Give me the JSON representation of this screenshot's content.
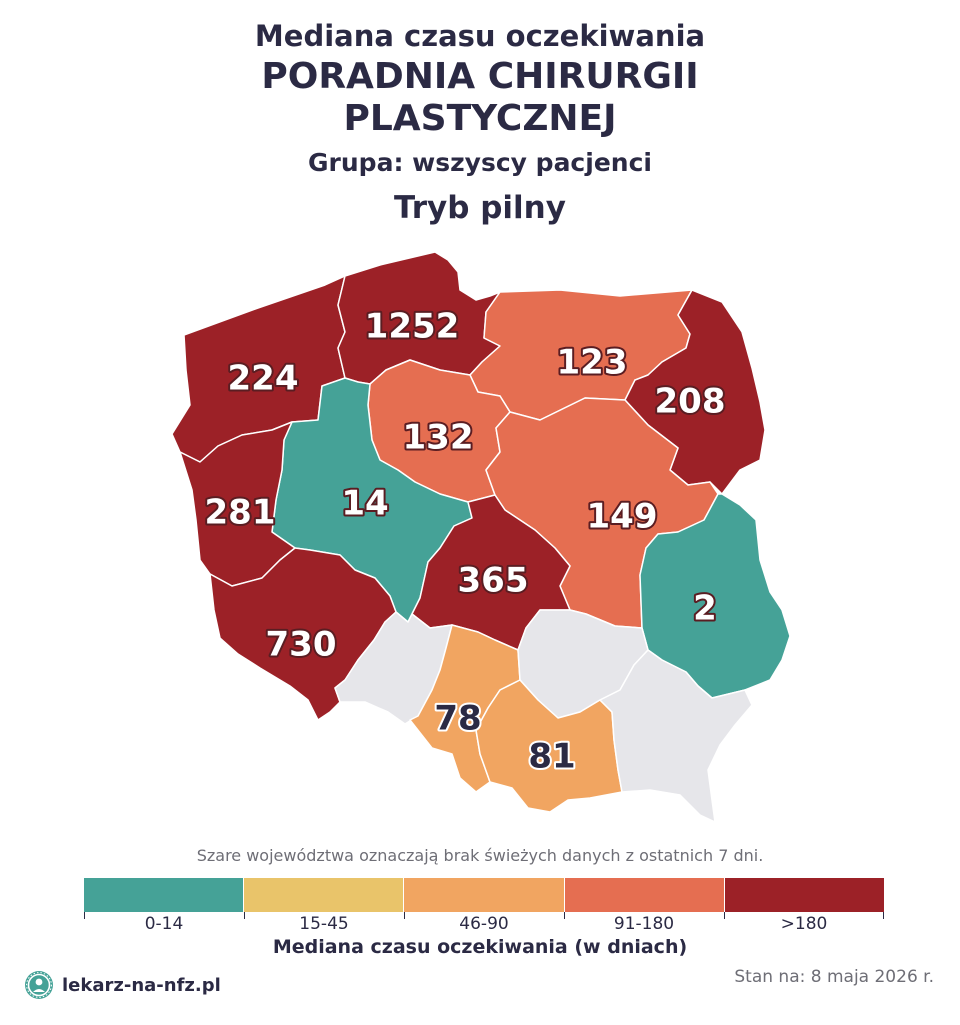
{
  "header": {
    "title_top": "Mediana czasu oczekiwania",
    "title_line1": "PORADNIA CHIRURGII",
    "title_line2": "PLASTYCZNEJ",
    "group": "Grupa: wszyscy pacjenci",
    "mode": "Tryb pilny"
  },
  "colors": {
    "c0_14": "#45a297",
    "c15_45": "#e9c46a",
    "c46_90": "#f1a561",
    "c91_180": "#e56e51",
    "c180": "#9c2127",
    "no_data": "#e6e6ea"
  },
  "regions": [
    {
      "name": "pomorskie",
      "value": "1252",
      "category": ">180"
    },
    {
      "name": "zachodniopomorskie",
      "value": "224",
      "category": ">180"
    },
    {
      "name": "warmińsko-mazurskie",
      "value": "123",
      "category": "91-180"
    },
    {
      "name": "podlaskie",
      "value": "208",
      "category": ">180"
    },
    {
      "name": "kujawsko-pomorskie",
      "value": "132",
      "category": "91-180"
    },
    {
      "name": "wielkopolskie",
      "value": "14",
      "category": "0-14"
    },
    {
      "name": "lubuskie",
      "value": "281",
      "category": ">180"
    },
    {
      "name": "mazowieckie",
      "value": "149",
      "category": "91-180"
    },
    {
      "name": "łódzkie",
      "value": "365",
      "category": ">180"
    },
    {
      "name": "lubelskie",
      "value": "2",
      "category": "0-14"
    },
    {
      "name": "dolnośląskie",
      "value": "730",
      "category": ">180"
    },
    {
      "name": "opolskie",
      "value": null,
      "category": "no-data"
    },
    {
      "name": "śląskie",
      "value": "78",
      "category": "46-90"
    },
    {
      "name": "małopolskie",
      "value": "81",
      "category": "46-90"
    },
    {
      "name": "świętokrzyskie",
      "value": null,
      "category": "no-data"
    },
    {
      "name": "podkarpackie",
      "value": null,
      "category": "no-data"
    }
  ],
  "note": "Szare województwa oznaczają brak świeżych danych z ostatnich 7 dni.",
  "legend": {
    "items": [
      {
        "label": "0-14",
        "color": "#45a297"
      },
      {
        "label": "15-45",
        "color": "#e9c46a"
      },
      {
        "label": "46-90",
        "color": "#f1a561"
      },
      {
        "label": "91-180",
        "color": "#e56e51"
      },
      {
        "label": ">180",
        "color": "#9c2127"
      }
    ],
    "title": "Mediana czasu oczekiwania (w dniach)"
  },
  "footer": {
    "brand": "lekarz-na-nfz.pl",
    "date": "Stan na: 8 maja 2026 r."
  }
}
